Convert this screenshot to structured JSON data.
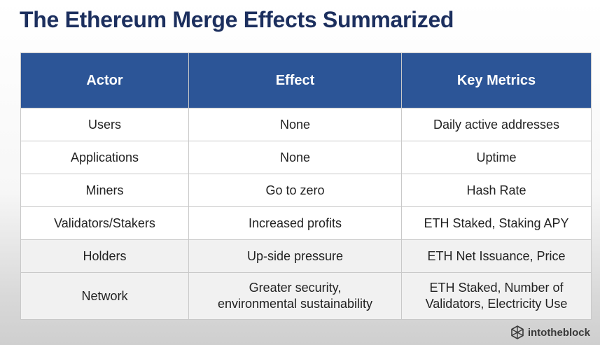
{
  "title": "The Ethereum Merge Effects Summarized",
  "table": {
    "headers": [
      "Actor",
      "Effect",
      "Key Metrics"
    ],
    "rows": [
      [
        "Users",
        "None",
        "Daily active addresses"
      ],
      [
        "Applications",
        "None",
        "Uptime"
      ],
      [
        "Miners",
        "Go to zero",
        "Hash Rate"
      ],
      [
        "Validators/Stakers",
        "Increased profits",
        "ETH Staked, Staking APY"
      ],
      [
        "Holders",
        "Up-side pressure",
        "ETH Net Issuance, Price"
      ],
      [
        "Network",
        [
          "Greater security,",
          "environmental sustainability"
        ],
        [
          "ETH Staked, Number of",
          "Validators, Electricity Use"
        ]
      ]
    ]
  },
  "logo": {
    "text": "intotheblock",
    "icon": "intotheblock-logo-icon"
  },
  "colors": {
    "title": "#1c2f5e",
    "header_bg": "#2c5597",
    "header_text": "#ffffff"
  }
}
